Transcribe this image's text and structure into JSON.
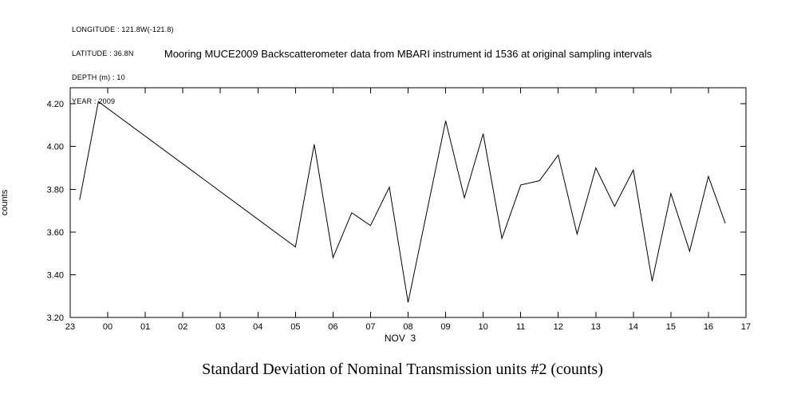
{
  "meta": {
    "lines": [
      "LONGITUDE : 121.8W(-121.8)",
      "LATITUDE : 36.8N",
      "DEPTH (m) : 10",
      "YEAR : 2009"
    ]
  },
  "title": "Mooring MUCE2009 Backscatterometer data from MBARI instrument id 1536 at original sampling intervals",
  "bottom_title": "Standard Deviation of Nominal Transmission units #2 (counts)",
  "chart_data": {
    "type": "line",
    "title": "Mooring MUCE2009 Backscatterometer data from MBARI instrument id 1536 at original sampling intervals",
    "xlabel": "NOV  3",
    "ylabel": "counts",
    "xlim": [
      23,
      41
    ],
    "ylim": [
      3.2,
      4.275
    ],
    "x_tick_values": [
      23,
      24,
      25,
      26,
      27,
      28,
      29,
      30,
      31,
      32,
      33,
      34,
      35,
      36,
      37,
      38,
      39,
      40,
      41
    ],
    "x_tick_labels": [
      "23",
      "00",
      "01",
      "02",
      "03",
      "04",
      "05",
      "06",
      "07",
      "08",
      "09",
      "10",
      "11",
      "12",
      "13",
      "14",
      "15",
      "16",
      "17"
    ],
    "y_tick_values": [
      3.2,
      3.4,
      3.6,
      3.8,
      4.0,
      4.2
    ],
    "y_tick_labels": [
      "3.20",
      "3.40",
      "3.60",
      "3.80",
      "4.00",
      "4.20"
    ],
    "grid": false,
    "legend": "none",
    "line_color": "#000000",
    "background_color": "#ffffff",
    "x": [
      23.25,
      23.75,
      29.0,
      29.5,
      30.0,
      30.5,
      31.0,
      31.5,
      32.0,
      33.0,
      33.5,
      34.0,
      34.5,
      35.0,
      35.5,
      36.0,
      36.5,
      37.0,
      37.5,
      38.0,
      38.5,
      39.0,
      39.5,
      40.0,
      40.45
    ],
    "y": [
      3.75,
      4.21,
      3.53,
      4.01,
      3.48,
      3.69,
      3.63,
      3.81,
      3.27,
      4.12,
      3.76,
      4.06,
      3.57,
      3.82,
      3.84,
      3.96,
      3.59,
      3.9,
      3.72,
      3.89,
      3.37,
      3.78,
      3.51,
      3.86,
      3.64
    ]
  }
}
